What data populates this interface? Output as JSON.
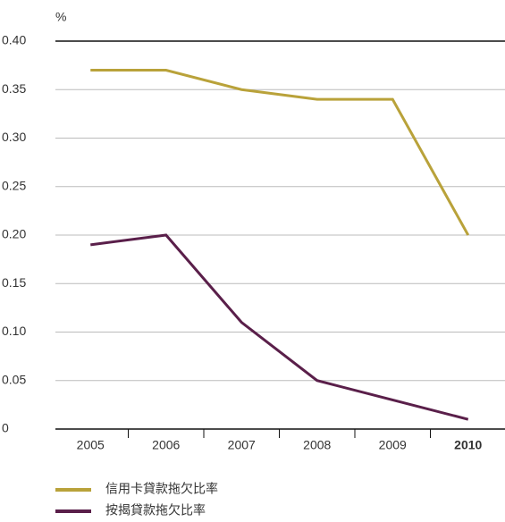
{
  "chart_data": {
    "type": "line",
    "y_label": "%",
    "categories": [
      "2005",
      "2006",
      "2007",
      "2008",
      "2009",
      "2010"
    ],
    "series": [
      {
        "name": "信用卡貸款拖欠比率",
        "color": "#b9a23a",
        "values": [
          0.37,
          0.37,
          0.35,
          0.34,
          0.34,
          0.2
        ]
      },
      {
        "name": "按揭貸款拖欠比率",
        "color": "#5a1f4a",
        "values": [
          0.19,
          0.2,
          0.11,
          0.05,
          0.03,
          0.01
        ]
      }
    ],
    "ylim": [
      0,
      0.4
    ],
    "yticks": [
      0,
      0.05,
      {
        "value": 0.1,
        "label": "0.10"
      },
      0.15,
      {
        "value": 0.2,
        "label": "0.20"
      },
      0.25,
      {
        "value": 0.3,
        "label": "0.30"
      },
      0.35,
      {
        "value": 0.4,
        "label": "0.40"
      }
    ],
    "grid": true
  }
}
